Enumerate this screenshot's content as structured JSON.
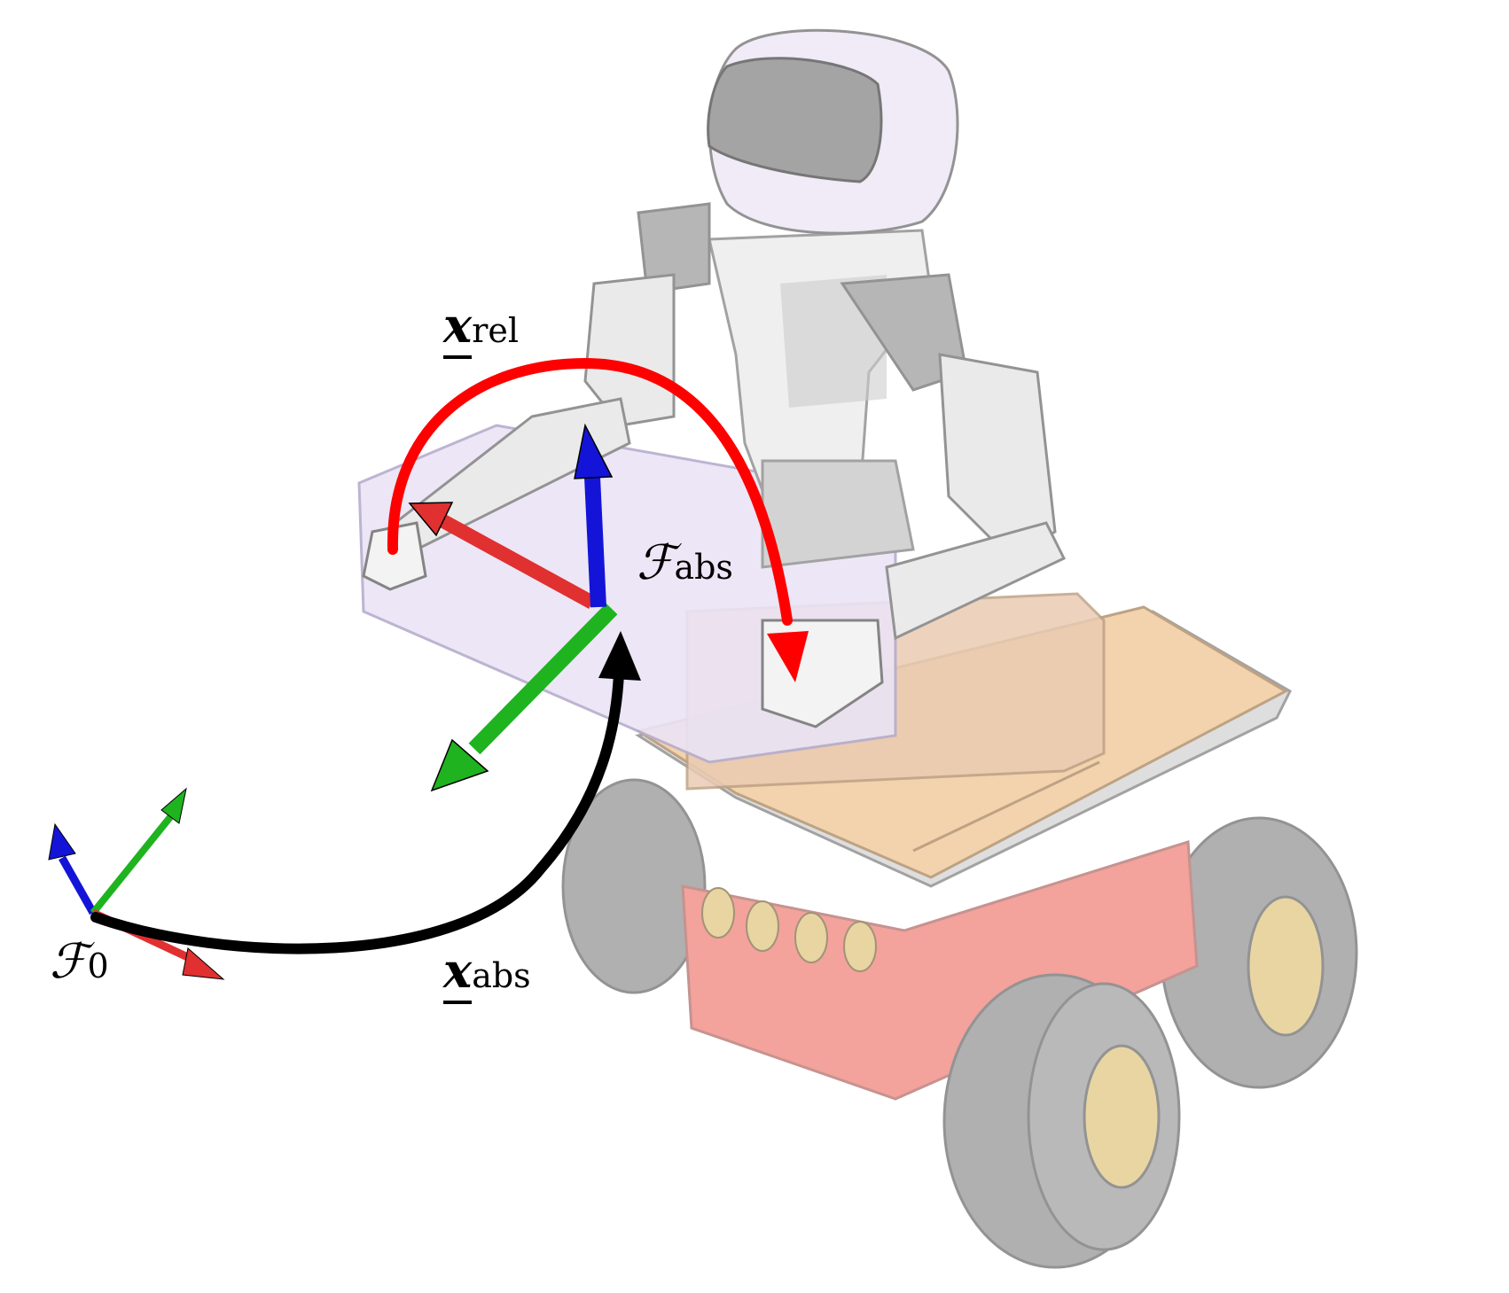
{
  "figure": {
    "label_x_rel": {
      "symbol": "x",
      "subscript": "rel"
    },
    "label_f_abs": {
      "symbol": "ℱ",
      "subscript": "abs"
    },
    "label_f_0": {
      "symbol": "ℱ",
      "subscript": "0"
    },
    "label_x_abs": {
      "symbol": "x",
      "subscript": "abs"
    }
  },
  "colors": {
    "x_axis": "#e03030",
    "y_axis": "#1fb31f",
    "z_axis": "#1414d8",
    "rel_arrow": "#ff0000",
    "abs_arrow": "#000000",
    "robot_body": "#b8b8b8",
    "robot_accent": "#e8e4f6",
    "table": "#e9e1f6",
    "platform_top": "#f1cfa6",
    "base_red": "#f29a94",
    "wheel": "#a7a7a7",
    "hub": "#e8d39a"
  }
}
